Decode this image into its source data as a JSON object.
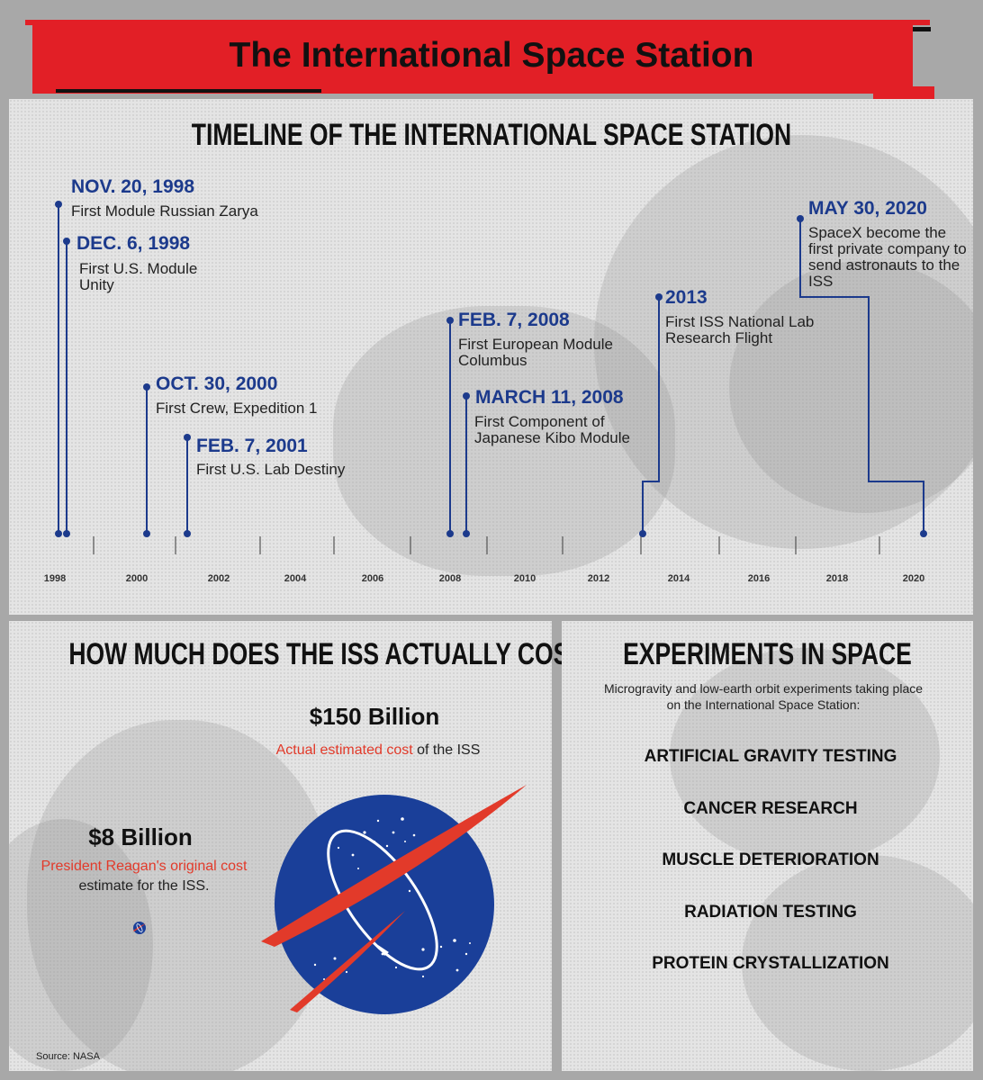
{
  "main_title": "The International Space Station",
  "timeline": {
    "heading": "TIMELINE OF THE INTERNATIONAL SPACE STATION",
    "years": [
      "1998",
      "2000",
      "2002",
      "2004",
      "2006",
      "2008",
      "2010",
      "2012",
      "2014",
      "2016",
      "2018",
      "2020"
    ],
    "events": [
      {
        "date": "NOV. 20, 1998",
        "desc": "First Module Russian Zarya"
      },
      {
        "date": "DEC. 6, 1998",
        "desc": "First U.S. Module Unity"
      },
      {
        "date": "OCT. 30, 2000",
        "desc": "First Crew, Expedition 1"
      },
      {
        "date": "FEB. 7, 2001",
        "desc": "First U.S. Lab Destiny"
      },
      {
        "date": "FEB. 7, 2008",
        "desc": "First European Module Columbus"
      },
      {
        "date": "MARCH 11, 2008",
        "desc": "First Component of Japanese Kibo Module"
      },
      {
        "date": "2013",
        "desc": "First ISS National Lab Research Flight"
      },
      {
        "date": "MAY 30, 2020",
        "desc": "SpaceX become the first private company to send astronauts to the ISS"
      }
    ]
  },
  "cost": {
    "heading": "HOW MUCH DOES THE ISS ACTUALLY COST?",
    "actual_amount": "$150 Billion",
    "actual_highlight": "Actual estimated cost",
    "actual_rest": " of the ISS",
    "original_amount": "$8 Billion",
    "original_highlight": "President Reagan's original cost",
    "original_rest": " estimate for the ISS.",
    "source": "Source: NASA"
  },
  "experiments": {
    "heading": "EXPERIMENTS IN SPACE",
    "intro": "Microgravity and low-earth orbit experiments taking place on the International Space Station:",
    "items": [
      "ARTIFICIAL GRAVITY TESTING",
      "CANCER RESEARCH",
      "MUSCLE DETERIORATION",
      "RADIATION TESTING",
      "PROTEIN CRYSTALLIZATION"
    ]
  },
  "colors": {
    "accent_red": "#e21f26",
    "navy": "#1c3a8c",
    "nasa_blue": "#1a3f99"
  }
}
